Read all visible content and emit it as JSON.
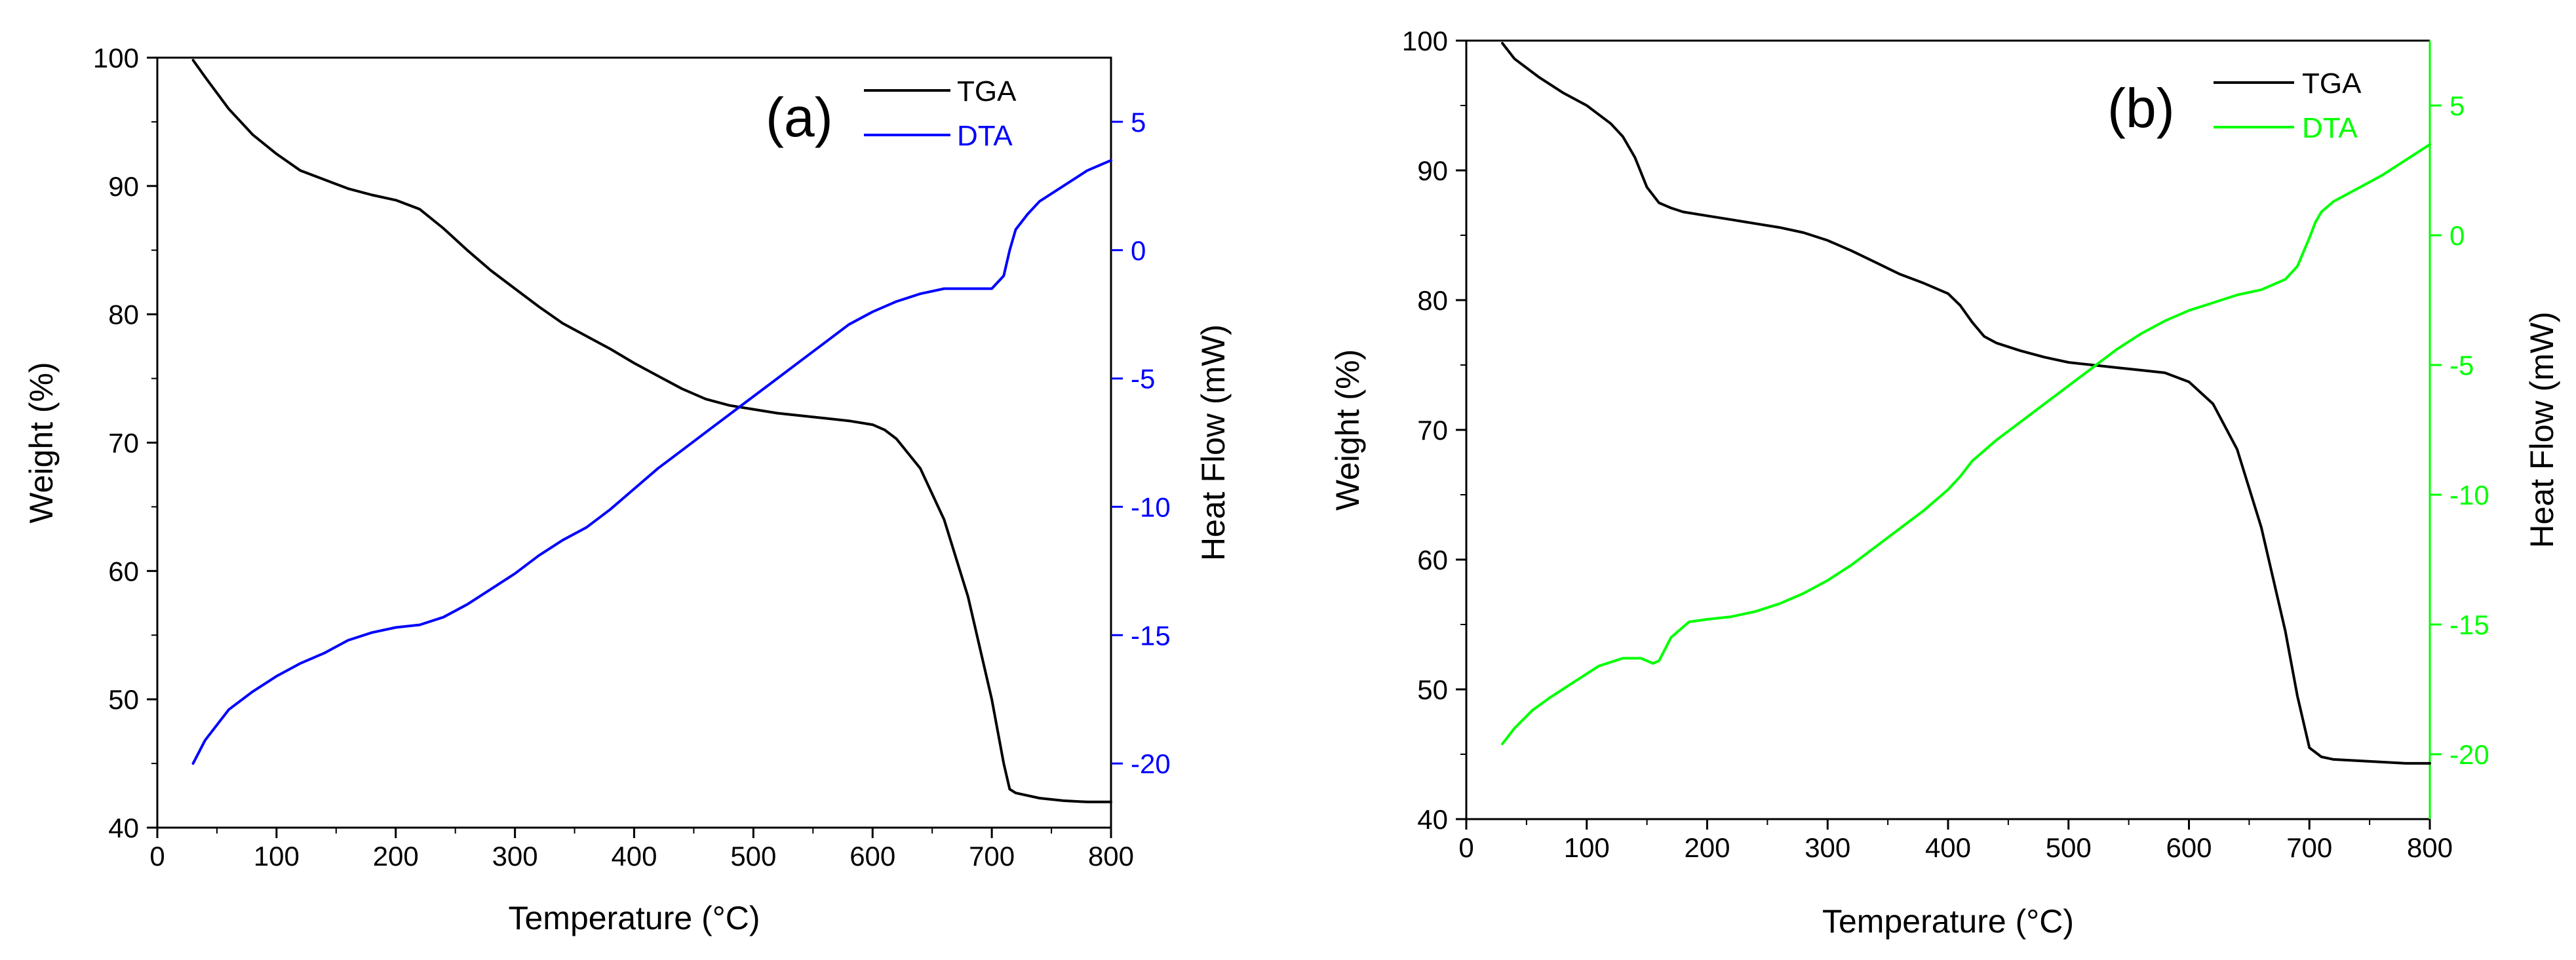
{
  "chart_data": [
    {
      "type": "line",
      "panel_label": "(a)",
      "xlabel": "Temperature (°C)",
      "ylabel_left": "Weight (%)",
      "ylabel_right": "Heat Flow (mW)",
      "xlim": [
        0,
        800
      ],
      "ylim_left": [
        40,
        100
      ],
      "ylim_right": [
        -22.5,
        7.5
      ],
      "x_ticks": [
        0,
        100,
        200,
        300,
        400,
        500,
        600,
        700,
        800
      ],
      "x_tick_labels": [
        "0",
        "100",
        "200",
        "300",
        "400",
        "500",
        "600",
        "700",
        "800"
      ],
      "y_left_ticks": [
        40,
        50,
        60,
        70,
        80,
        90,
        100
      ],
      "y_left_tick_labels": [
        "40",
        "50",
        "60",
        "70",
        "80",
        "90",
        "100"
      ],
      "y_right_ticks": [
        -20,
        -15,
        -10,
        -5,
        0,
        5
      ],
      "y_right_tick_labels": [
        "-20",
        "-15",
        "-10",
        "-5",
        "0",
        "5"
      ],
      "right_axis_color": "#0000ff",
      "legend_position": "top-right",
      "series": [
        {
          "name": "TGA",
          "axis": "left",
          "color": "#000000",
          "x": [
            30,
            40,
            60,
            80,
            100,
            120,
            140,
            160,
            180,
            200,
            220,
            240,
            260,
            280,
            300,
            320,
            340,
            360,
            380,
            400,
            420,
            440,
            460,
            480,
            500,
            520,
            540,
            560,
            580,
            600,
            610,
            620,
            640,
            660,
            680,
            700,
            710,
            715,
            720,
            740,
            760,
            780,
            800
          ],
          "values": [
            99.8,
            98.5,
            96.0,
            94.0,
            92.5,
            91.2,
            90.5,
            89.8,
            89.3,
            88.9,
            88.2,
            86.7,
            85.0,
            83.4,
            82.0,
            80.6,
            79.3,
            78.3,
            77.3,
            76.2,
            75.2,
            74.2,
            73.4,
            72.9,
            72.6,
            72.3,
            72.1,
            71.9,
            71.7,
            71.4,
            71.0,
            70.3,
            68.0,
            64.0,
            58.0,
            50.0,
            45.0,
            43.0,
            42.7,
            42.3,
            42.1,
            42.0,
            42.0
          ]
        },
        {
          "name": "DTA",
          "axis": "right",
          "color": "#0000ff",
          "x": [
            30,
            40,
            60,
            80,
            100,
            120,
            140,
            160,
            180,
            200,
            220,
            240,
            260,
            280,
            300,
            320,
            340,
            360,
            380,
            400,
            420,
            440,
            460,
            480,
            500,
            520,
            540,
            560,
            580,
            600,
            620,
            640,
            660,
            680,
            700,
            710,
            715,
            720,
            730,
            740,
            760,
            780,
            800
          ],
          "values": [
            -20.0,
            -19.1,
            -17.9,
            -17.2,
            -16.6,
            -16.1,
            -15.7,
            -15.2,
            -14.9,
            -14.7,
            -14.6,
            -14.3,
            -13.8,
            -13.2,
            -12.6,
            -11.9,
            -11.3,
            -10.8,
            -10.1,
            -9.3,
            -8.5,
            -7.8,
            -7.1,
            -6.4,
            -5.7,
            -5.0,
            -4.3,
            -3.6,
            -2.9,
            -2.4,
            -2.0,
            -1.7,
            -1.5,
            -1.5,
            -1.5,
            -1.0,
            0.0,
            0.8,
            1.4,
            1.9,
            2.5,
            3.1,
            3.5
          ]
        }
      ]
    },
    {
      "type": "line",
      "panel_label": "(b)",
      "xlabel": "Temperature (°C)",
      "ylabel_left": "Weight (%)",
      "ylabel_right": "Heat Flow (mW)",
      "xlim": [
        0,
        800
      ],
      "ylim_left": [
        40,
        100
      ],
      "ylim_right": [
        -22.5,
        7.5
      ],
      "x_ticks": [
        0,
        100,
        200,
        300,
        400,
        500,
        600,
        700,
        800
      ],
      "x_tick_labels": [
        "0",
        "100",
        "200",
        "300",
        "400",
        "500",
        "600",
        "700",
        "800"
      ],
      "y_left_ticks": [
        40,
        50,
        60,
        70,
        80,
        90,
        100
      ],
      "y_left_tick_labels": [
        "40",
        "50",
        "60",
        "70",
        "80",
        "90",
        "100"
      ],
      "y_right_ticks": [
        -20,
        -15,
        -10,
        -5,
        0,
        5
      ],
      "y_right_tick_labels": [
        "-20",
        "-15",
        "-10",
        "-5",
        "0",
        "5"
      ],
      "right_axis_color": "#00ff00",
      "legend_position": "top-right",
      "series": [
        {
          "name": "TGA",
          "axis": "left",
          "color": "#000000",
          "x": [
            30,
            40,
            60,
            80,
            100,
            120,
            130,
            140,
            150,
            160,
            170,
            180,
            200,
            220,
            240,
            260,
            280,
            300,
            320,
            340,
            360,
            380,
            400,
            410,
            420,
            430,
            440,
            460,
            480,
            500,
            520,
            540,
            560,
            580,
            600,
            620,
            640,
            660,
            680,
            690,
            700,
            710,
            720,
            740,
            760,
            780,
            800
          ],
          "values": [
            99.8,
            98.6,
            97.2,
            96.0,
            95.0,
            93.6,
            92.6,
            91.0,
            88.7,
            87.5,
            87.1,
            86.8,
            86.5,
            86.2,
            85.9,
            85.6,
            85.2,
            84.6,
            83.8,
            82.9,
            82.0,
            81.3,
            80.5,
            79.6,
            78.3,
            77.2,
            76.7,
            76.1,
            75.6,
            75.2,
            75.0,
            74.8,
            74.6,
            74.4,
            73.7,
            72.0,
            68.5,
            62.5,
            54.5,
            49.5,
            45.5,
            44.8,
            44.6,
            44.5,
            44.4,
            44.3,
            44.3
          ]
        },
        {
          "name": "DTA",
          "axis": "right",
          "color": "#00ff00",
          "x": [
            30,
            40,
            55,
            70,
            90,
            110,
            130,
            145,
            155,
            160,
            170,
            185,
            200,
            220,
            240,
            260,
            280,
            300,
            320,
            340,
            360,
            380,
            400,
            410,
            420,
            440,
            460,
            480,
            500,
            520,
            540,
            560,
            580,
            600,
            620,
            640,
            660,
            680,
            690,
            700,
            705,
            710,
            720,
            740,
            760,
            780,
            800
          ],
          "values": [
            -19.6,
            -19.0,
            -18.3,
            -17.8,
            -17.2,
            -16.6,
            -16.3,
            -16.3,
            -16.5,
            -16.4,
            -15.5,
            -14.9,
            -14.8,
            -14.7,
            -14.5,
            -14.2,
            -13.8,
            -13.3,
            -12.7,
            -12.0,
            -11.3,
            -10.6,
            -9.8,
            -9.3,
            -8.7,
            -7.9,
            -7.2,
            -6.5,
            -5.8,
            -5.1,
            -4.4,
            -3.8,
            -3.3,
            -2.9,
            -2.6,
            -2.3,
            -2.1,
            -1.7,
            -1.2,
            -0.1,
            0.5,
            0.9,
            1.3,
            1.8,
            2.3,
            2.9,
            3.5
          ]
        }
      ]
    }
  ]
}
